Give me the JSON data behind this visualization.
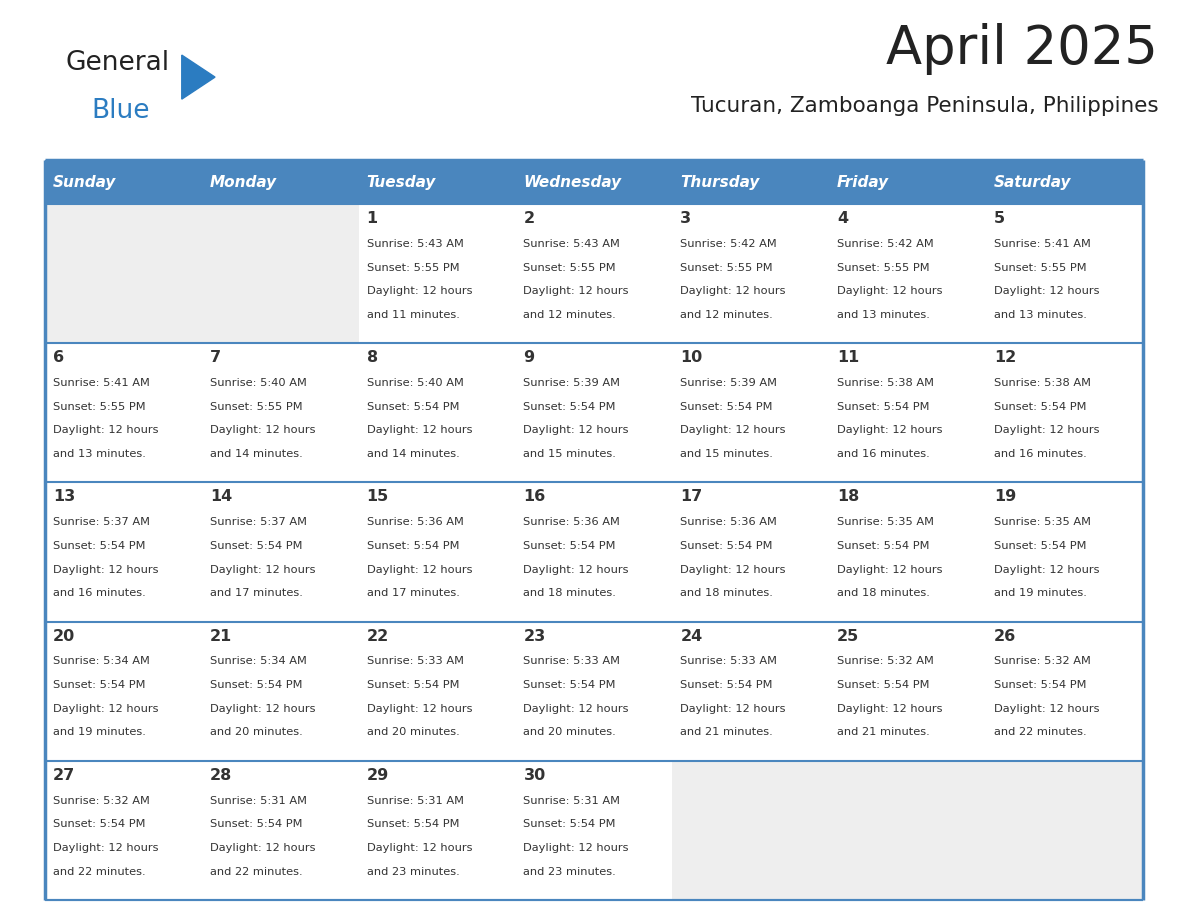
{
  "title": "April 2025",
  "subtitle": "Tucuran, Zamboanga Peninsula, Philippines",
  "days_of_week": [
    "Sunday",
    "Monday",
    "Tuesday",
    "Wednesday",
    "Thursday",
    "Friday",
    "Saturday"
  ],
  "header_bg_color": "#4a86be",
  "header_text_color": "#ffffff",
  "cell_bg_white": "#ffffff",
  "cell_bg_light": "#eeeeee",
  "border_color": "#4a86be",
  "text_color": "#333333",
  "title_color": "#222222",
  "subtitle_color": "#222222",
  "logo_general_color": "#222222",
  "logo_blue_color": "#2b7cc1",
  "logo_triangle_color": "#2b7cc1",
  "calendar": [
    [
      null,
      null,
      {
        "day": 1,
        "sunrise": "5:43 AM",
        "sunset": "5:55 PM",
        "daylight": "12 hours and 11 minutes."
      },
      {
        "day": 2,
        "sunrise": "5:43 AM",
        "sunset": "5:55 PM",
        "daylight": "12 hours and 12 minutes."
      },
      {
        "day": 3,
        "sunrise": "5:42 AM",
        "sunset": "5:55 PM",
        "daylight": "12 hours and 12 minutes."
      },
      {
        "day": 4,
        "sunrise": "5:42 AM",
        "sunset": "5:55 PM",
        "daylight": "12 hours and 13 minutes."
      },
      {
        "day": 5,
        "sunrise": "5:41 AM",
        "sunset": "5:55 PM",
        "daylight": "12 hours and 13 minutes."
      }
    ],
    [
      {
        "day": 6,
        "sunrise": "5:41 AM",
        "sunset": "5:55 PM",
        "daylight": "12 hours and 13 minutes."
      },
      {
        "day": 7,
        "sunrise": "5:40 AM",
        "sunset": "5:55 PM",
        "daylight": "12 hours and 14 minutes."
      },
      {
        "day": 8,
        "sunrise": "5:40 AM",
        "sunset": "5:54 PM",
        "daylight": "12 hours and 14 minutes."
      },
      {
        "day": 9,
        "sunrise": "5:39 AM",
        "sunset": "5:54 PM",
        "daylight": "12 hours and 15 minutes."
      },
      {
        "day": 10,
        "sunrise": "5:39 AM",
        "sunset": "5:54 PM",
        "daylight": "12 hours and 15 minutes."
      },
      {
        "day": 11,
        "sunrise": "5:38 AM",
        "sunset": "5:54 PM",
        "daylight": "12 hours and 16 minutes."
      },
      {
        "day": 12,
        "sunrise": "5:38 AM",
        "sunset": "5:54 PM",
        "daylight": "12 hours and 16 minutes."
      }
    ],
    [
      {
        "day": 13,
        "sunrise": "5:37 AM",
        "sunset": "5:54 PM",
        "daylight": "12 hours and 16 minutes."
      },
      {
        "day": 14,
        "sunrise": "5:37 AM",
        "sunset": "5:54 PM",
        "daylight": "12 hours and 17 minutes."
      },
      {
        "day": 15,
        "sunrise": "5:36 AM",
        "sunset": "5:54 PM",
        "daylight": "12 hours and 17 minutes."
      },
      {
        "day": 16,
        "sunrise": "5:36 AM",
        "sunset": "5:54 PM",
        "daylight": "12 hours and 18 minutes."
      },
      {
        "day": 17,
        "sunrise": "5:36 AM",
        "sunset": "5:54 PM",
        "daylight": "12 hours and 18 minutes."
      },
      {
        "day": 18,
        "sunrise": "5:35 AM",
        "sunset": "5:54 PM",
        "daylight": "12 hours and 18 minutes."
      },
      {
        "day": 19,
        "sunrise": "5:35 AM",
        "sunset": "5:54 PM",
        "daylight": "12 hours and 19 minutes."
      }
    ],
    [
      {
        "day": 20,
        "sunrise": "5:34 AM",
        "sunset": "5:54 PM",
        "daylight": "12 hours and 19 minutes."
      },
      {
        "day": 21,
        "sunrise": "5:34 AM",
        "sunset": "5:54 PM",
        "daylight": "12 hours and 20 minutes."
      },
      {
        "day": 22,
        "sunrise": "5:33 AM",
        "sunset": "5:54 PM",
        "daylight": "12 hours and 20 minutes."
      },
      {
        "day": 23,
        "sunrise": "5:33 AM",
        "sunset": "5:54 PM",
        "daylight": "12 hours and 20 minutes."
      },
      {
        "day": 24,
        "sunrise": "5:33 AM",
        "sunset": "5:54 PM",
        "daylight": "12 hours and 21 minutes."
      },
      {
        "day": 25,
        "sunrise": "5:32 AM",
        "sunset": "5:54 PM",
        "daylight": "12 hours and 21 minutes."
      },
      {
        "day": 26,
        "sunrise": "5:32 AM",
        "sunset": "5:54 PM",
        "daylight": "12 hours and 22 minutes."
      }
    ],
    [
      {
        "day": 27,
        "sunrise": "5:32 AM",
        "sunset": "5:54 PM",
        "daylight": "12 hours and 22 minutes."
      },
      {
        "day": 28,
        "sunrise": "5:31 AM",
        "sunset": "5:54 PM",
        "daylight": "12 hours and 22 minutes."
      },
      {
        "day": 29,
        "sunrise": "5:31 AM",
        "sunset": "5:54 PM",
        "daylight": "12 hours and 23 minutes."
      },
      {
        "day": 30,
        "sunrise": "5:31 AM",
        "sunset": "5:54 PM",
        "daylight": "12 hours and 23 minutes."
      },
      null,
      null,
      null
    ]
  ]
}
